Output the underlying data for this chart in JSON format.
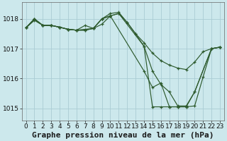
{
  "background_color": "#cce8ec",
  "grid_color": "#aaccd4",
  "line_color": "#2d5a2d",
  "marker_color": "#2d5a2d",
  "title": "Graphe pression niveau de la mer (hPa)",
  "xlim": [
    -0.5,
    23.5
  ],
  "ylim": [
    1014.6,
    1018.55
  ],
  "yticks": [
    1015,
    1016,
    1017,
    1018
  ],
  "xticks": [
    0,
    1,
    2,
    3,
    4,
    5,
    6,
    7,
    8,
    9,
    10,
    11,
    12,
    13,
    14,
    15,
    16,
    17,
    18,
    19,
    20,
    21,
    22,
    23
  ],
  "series": [
    {
      "x": [
        0,
        1,
        2,
        3,
        4,
        5,
        6,
        7,
        8,
        9,
        10,
        11,
        12,
        13,
        14,
        15,
        16,
        17,
        18,
        19,
        20,
        21,
        22,
        23
      ],
      "y": [
        1017.7,
        1017.95,
        1017.78,
        1017.78,
        1017.72,
        1017.65,
        1017.62,
        1017.65,
        1017.68,
        1017.82,
        1018.1,
        1018.18,
        1017.88,
        1017.5,
        1017.2,
        1016.85,
        1016.6,
        1016.45,
        1016.35,
        1016.3,
        1016.55,
        1016.9,
        1017.0,
        1017.05
      ]
    },
    {
      "x": [
        0,
        1,
        2,
        3,
        4,
        5,
        6,
        7,
        8,
        9,
        10,
        11,
        14,
        15,
        16,
        17,
        18,
        19,
        20,
        21,
        22,
        23
      ],
      "y": [
        1017.7,
        1018.0,
        1017.78,
        1017.78,
        1017.72,
        1017.65,
        1017.62,
        1017.78,
        1017.68,
        1018.0,
        1018.1,
        1018.18,
        1017.08,
        1015.05,
        1015.05,
        1015.05,
        1015.05,
        1015.05,
        1015.08,
        1016.05,
        1017.0,
        1017.05
      ]
    },
    {
      "x": [
        0,
        1,
        2,
        3,
        4,
        5,
        6,
        7,
        8,
        9,
        10,
        14,
        15,
        16,
        17,
        18,
        19,
        20,
        22,
        23
      ],
      "y": [
        1017.7,
        1018.0,
        1017.78,
        1017.78,
        1017.72,
        1017.65,
        1017.62,
        1017.62,
        1017.68,
        1018.0,
        1018.1,
        1016.25,
        1015.7,
        1015.85,
        1015.05,
        1015.05,
        1015.05,
        1015.55,
        1017.0,
        1017.05
      ]
    },
    {
      "x": [
        0,
        1,
        2,
        3,
        4,
        5,
        6,
        7,
        8,
        9,
        10,
        11,
        12,
        13,
        14,
        15,
        16,
        17,
        18,
        19,
        20,
        22,
        23
      ],
      "y": [
        1017.7,
        1018.0,
        1017.78,
        1017.78,
        1017.72,
        1017.65,
        1017.62,
        1017.62,
        1017.68,
        1018.0,
        1018.18,
        1018.22,
        1017.88,
        1017.5,
        1017.08,
        1016.25,
        1015.8,
        1015.55,
        1015.08,
        1015.08,
        1015.55,
        1017.0,
        1017.05
      ]
    }
  ],
  "title_fontsize": 8,
  "tick_fontsize": 6.5
}
